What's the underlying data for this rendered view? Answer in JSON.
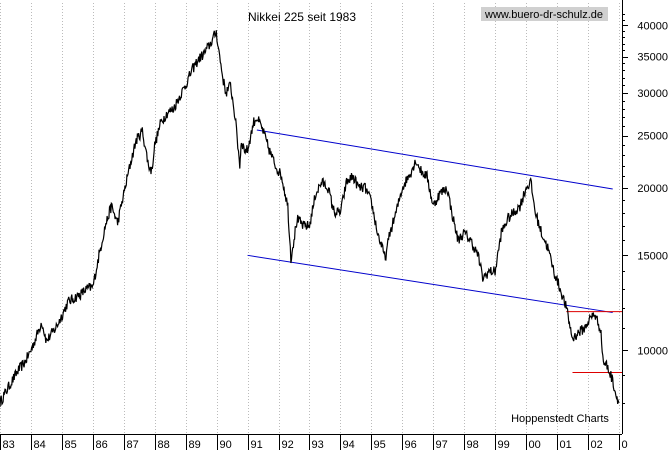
{
  "chart_data": {
    "type": "line",
    "title": "Nikkei 225 seit 1983",
    "watermark": "www.buero-dr-schulz.de",
    "source": "Hoppenstedt Charts",
    "y_scale": "log",
    "ylim": [
      7000,
      44000
    ],
    "yticks": [
      {
        "value": 10000,
        "label": "10000"
      },
      {
        "value": 15000,
        "label": "15000"
      },
      {
        "value": 20000,
        "label": "20000"
      },
      {
        "value": 25000,
        "label": "25000"
      },
      {
        "value": 30000,
        "label": "30000"
      },
      {
        "value": 35000,
        "label": "35000"
      },
      {
        "value": 40000,
        "label": "40000"
      }
    ],
    "xlim": [
      1983.0,
      2003.1
    ],
    "xticks": [
      {
        "value": 1983,
        "label": "83"
      },
      {
        "value": 1984,
        "label": "84"
      },
      {
        "value": 1985,
        "label": "85"
      },
      {
        "value": 1986,
        "label": "86"
      },
      {
        "value": 1987,
        "label": "87"
      },
      {
        "value": 1988,
        "label": "88"
      },
      {
        "value": 1989,
        "label": "89"
      },
      {
        "value": 1990,
        "label": "90"
      },
      {
        "value": 1991,
        "label": "91"
      },
      {
        "value": 1992,
        "label": "92"
      },
      {
        "value": 1993,
        "label": "93"
      },
      {
        "value": 1994,
        "label": "94"
      },
      {
        "value": 1995,
        "label": "95"
      },
      {
        "value": 1996,
        "label": "96"
      },
      {
        "value": 1997,
        "label": "97"
      },
      {
        "value": 1998,
        "label": "98"
      },
      {
        "value": 1999,
        "label": "99"
      },
      {
        "value": 2000,
        "label": "00"
      },
      {
        "value": 2001,
        "label": "01"
      },
      {
        "value": 2002,
        "label": "02"
      },
      {
        "value": 2003,
        "label": "0"
      }
    ],
    "grid": {
      "vertical": true,
      "horizontal": false
    },
    "colors": {
      "series": "#000000",
      "channel": "#0000cc",
      "support": "#dd0000",
      "grid": "#bbbbbb",
      "watermark_bg": "#d0d0d0"
    },
    "series": [
      {
        "x": [
          1983.0,
          1983.2,
          1983.4,
          1983.6,
          1983.8,
          1984.0,
          1984.2,
          1984.35,
          1984.5,
          1984.6,
          1984.8,
          1985.0,
          1985.2,
          1985.4,
          1985.6,
          1985.8,
          1986.0,
          1986.2,
          1986.4,
          1986.6,
          1986.8,
          1987.0,
          1987.2,
          1987.4,
          1987.6,
          1987.8,
          1987.9,
          1988.0,
          1988.2,
          1988.4,
          1988.6,
          1988.8,
          1989.0,
          1989.2,
          1989.4,
          1989.6,
          1989.8,
          1989.99,
          1990.1,
          1990.2,
          1990.3,
          1990.45,
          1990.6,
          1990.75,
          1990.8,
          1990.9,
          1991.0,
          1991.2,
          1991.3,
          1991.5,
          1991.7,
          1991.9,
          1992.1,
          1992.3,
          1992.4,
          1992.6,
          1992.8,
          1993.0,
          1993.2,
          1993.4,
          1993.6,
          1993.8,
          1994.0,
          1994.2,
          1994.4,
          1994.6,
          1994.8,
          1995.0,
          1995.2,
          1995.45,
          1995.6,
          1995.8,
          1996.0,
          1996.2,
          1996.45,
          1996.6,
          1996.8,
          1997.0,
          1997.2,
          1997.45,
          1997.6,
          1997.8,
          1998.0,
          1998.2,
          1998.45,
          1998.6,
          1998.8,
          1999.0,
          1999.2,
          1999.4,
          1999.6,
          1999.8,
          2000.0,
          2000.15,
          2000.3,
          2000.5,
          2000.7,
          2000.9,
          2001.1,
          2001.3,
          2001.5,
          2001.7,
          2001.9,
          2002.0,
          2002.2,
          2002.4,
          2002.5,
          2002.6,
          2002.8,
          2002.9,
          2003.0
        ],
        "values": [
          8000,
          8400,
          8800,
          9200,
          9500,
          10000,
          10700,
          11300,
          10400,
          10600,
          11000,
          11600,
          12300,
          12500,
          12700,
          13000,
          13100,
          15000,
          17000,
          18500,
          17200,
          19500,
          22000,
          24500,
          25500,
          22000,
          21500,
          24000,
          26500,
          27500,
          28000,
          29500,
          31000,
          33000,
          34500,
          35500,
          37000,
          38900,
          35000,
          32000,
          30000,
          31000,
          27000,
          22000,
          24500,
          23500,
          23500,
          26500,
          27000,
          25500,
          23500,
          22000,
          21000,
          18500,
          14800,
          17500,
          17000,
          17000,
          19500,
          20500,
          20000,
          18000,
          18000,
          20500,
          21000,
          20000,
          20000,
          18800,
          16500,
          14800,
          16500,
          18000,
          20000,
          21000,
          22500,
          21500,
          21000,
          18500,
          19500,
          20000,
          18000,
          16000,
          16500,
          16000,
          15000,
          13600,
          14000,
          14000,
          16500,
          17500,
          18000,
          18500,
          20000,
          20500,
          18000,
          16500,
          15500,
          14000,
          13000,
          12000,
          10500,
          10800,
          11000,
          11300,
          11700,
          11000,
          9500,
          9400,
          8800,
          8300,
          8000
        ]
      }
    ],
    "trendlines": [
      {
        "role": "channel-upper",
        "x": [
          1991.3,
          2002.8
        ],
        "values": [
          25600,
          19900
        ]
      },
      {
        "role": "channel-lower",
        "x": [
          1991.0,
          2002.8
        ],
        "values": [
          15000,
          11750
        ]
      },
      {
        "role": "support",
        "x": [
          2001.3,
          2003.1
        ],
        "values": [
          11800,
          11800
        ]
      },
      {
        "role": "support",
        "x": [
          2001.5,
          2003.1
        ],
        "values": [
          9100,
          9100
        ]
      }
    ]
  }
}
